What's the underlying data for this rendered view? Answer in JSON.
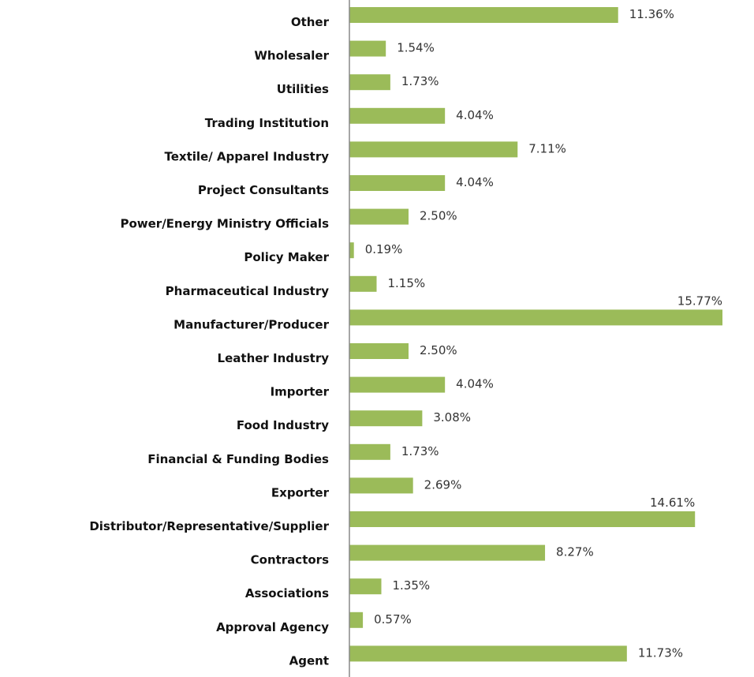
{
  "chart_data": {
    "type": "bar",
    "orientation": "horizontal",
    "color": "#9bbb59",
    "categories": [
      "Other",
      "Wholesaler",
      "Utilities",
      "Trading Institution",
      "Textile/ Apparel Industry",
      "Project Consultants",
      "Power/Energy Ministry Officials",
      "Policy Maker",
      "Pharmaceutical Industry",
      "Manufacturer/Producer",
      "Leather Industry",
      "Importer",
      "Food Industry",
      "Financial & Funding Bodies",
      "Exporter",
      "Distributor/Representative/Supplier",
      "Contractors",
      "Associations",
      "Approval Agency",
      "Agent"
    ],
    "values": [
      11.36,
      1.54,
      1.73,
      4.04,
      7.11,
      4.04,
      2.5,
      0.19,
      1.15,
      15.77,
      2.5,
      4.04,
      3.08,
      1.73,
      2.69,
      14.61,
      8.27,
      1.35,
      0.57,
      11.73
    ],
    "value_labels": [
      "11.36%",
      "1.54%",
      "1.73%",
      "4.04%",
      "7.11%",
      "4.04%",
      "2.50%",
      "0.19%",
      "1.15%",
      "15.77%",
      "2.50%",
      "4.04%",
      "3.08%",
      "1.73%",
      "2.69%",
      "14.61%",
      "8.27%",
      "1.35%",
      "0.57%",
      "11.73%"
    ]
  }
}
